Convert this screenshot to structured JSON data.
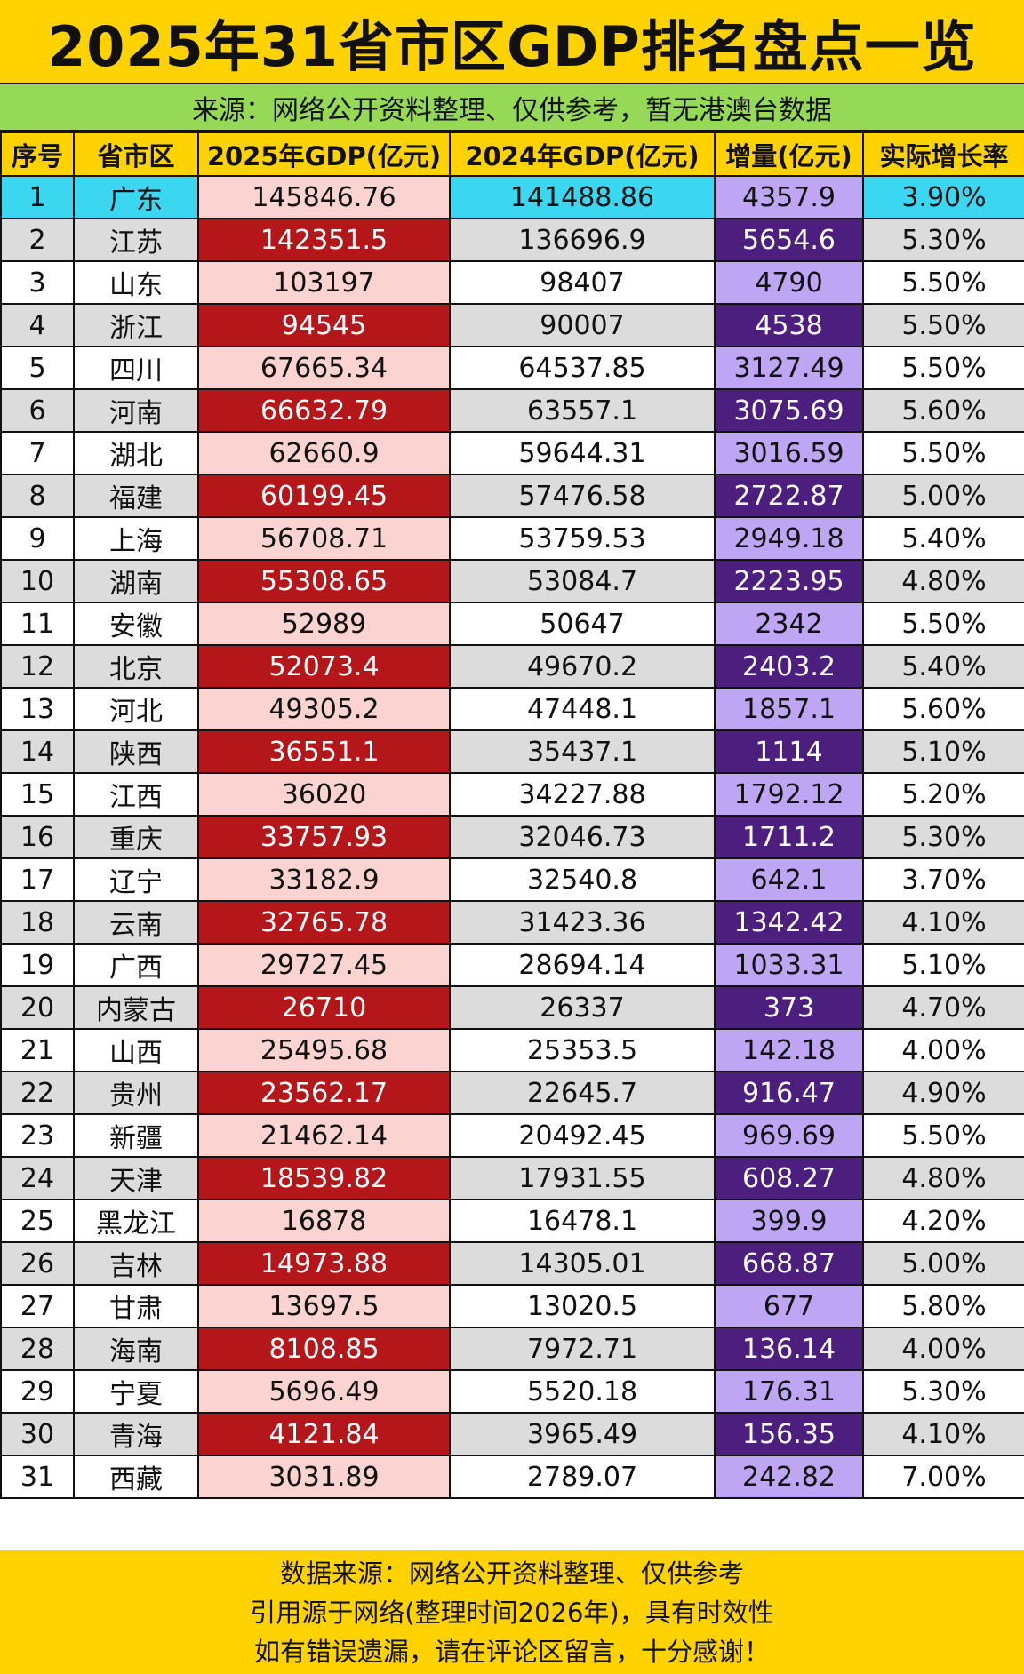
{
  "title": "2025年31省市区GDP排名盘点一览",
  "subtitle": "来源：网络公开资料整理、仅供参考，暂无港澳台数据",
  "headers": [
    "序号",
    "省市区",
    "2025年GDP(亿元)",
    "2024年GDP(亿元)",
    "增量(亿元)",
    "实际增长率"
  ],
  "rows": [
    [
      "1",
      "广东",
      "145846.76",
      "141488.86",
      "4357.9",
      "3.90%"
    ],
    [
      "2",
      "江苏",
      "142351.5",
      "136696.9",
      "5654.6",
      "5.30%"
    ],
    [
      "3",
      "山东",
      "103197",
      "98407",
      "4790",
      "5.50%"
    ],
    [
      "4",
      "浙江",
      "94545",
      "90007",
      "4538",
      "5.50%"
    ],
    [
      "5",
      "四川",
      "67665.34",
      "64537.85",
      "3127.49",
      "5.50%"
    ],
    [
      "6",
      "河南",
      "66632.79",
      "63557.1",
      "3075.69",
      "5.60%"
    ],
    [
      "7",
      "湖北",
      "62660.9",
      "59644.31",
      "3016.59",
      "5.50%"
    ],
    [
      "8",
      "福建",
      "60199.45",
      "57476.58",
      "2722.87",
      "5.00%"
    ],
    [
      "9",
      "上海",
      "56708.71",
      "53759.53",
      "2949.18",
      "5.40%"
    ],
    [
      "10",
      "湖南",
      "55308.65",
      "53084.7",
      "2223.95",
      "4.80%"
    ],
    [
      "11",
      "安徽",
      "52989",
      "50647",
      "2342",
      "5.50%"
    ],
    [
      "12",
      "北京",
      "52073.4",
      "49670.2",
      "2403.2",
      "5.40%"
    ],
    [
      "13",
      "河北",
      "49305.2",
      "47448.1",
      "1857.1",
      "5.60%"
    ],
    [
      "14",
      "陕西",
      "36551.1",
      "35437.1",
      "1114",
      "5.10%"
    ],
    [
      "15",
      "江西",
      "36020",
      "34227.88",
      "1792.12",
      "5.20%"
    ],
    [
      "16",
      "重庆",
      "33757.93",
      "32046.73",
      "1711.2",
      "5.30%"
    ],
    [
      "17",
      "辽宁",
      "33182.9",
      "32540.8",
      "642.1",
      "3.70%"
    ],
    [
      "18",
      "云南",
      "32765.78",
      "31423.36",
      "1342.42",
      "4.10%"
    ],
    [
      "19",
      "广西",
      "29727.45",
      "28694.14",
      "1033.31",
      "5.10%"
    ],
    [
      "20",
      "内蒙古",
      "26710",
      "26337",
      "373",
      "4.70%"
    ],
    [
      "21",
      "山西",
      "25495.68",
      "25353.5",
      "142.18",
      "4.00%"
    ],
    [
      "22",
      "贵州",
      "23562.17",
      "22645.7",
      "916.47",
      "4.90%"
    ],
    [
      "23",
      "新疆",
      "21462.14",
      "20492.45",
      "969.69",
      "5.50%"
    ],
    [
      "24",
      "天津",
      "18539.82",
      "17931.55",
      "608.27",
      "4.80%"
    ],
    [
      "25",
      "黑龙江",
      "16878",
      "16478.1",
      "399.9",
      "4.20%"
    ],
    [
      "26",
      "吉林",
      "14973.88",
      "14305.01",
      "668.87",
      "5.00%"
    ],
    [
      "27",
      "甘肃",
      "13697.5",
      "13020.5",
      "677",
      "5.80%"
    ],
    [
      "28",
      "海南",
      "8108.85",
      "7972.71",
      "136.14",
      "4.00%"
    ],
    [
      "29",
      "宁夏",
      "5696.49",
      "5520.18",
      "176.31",
      "5.30%"
    ],
    [
      "30",
      "青海",
      "4121.84",
      "3965.49",
      "156.35",
      "4.10%"
    ],
    [
      "31",
      "西藏",
      "3031.89",
      "2789.07",
      "242.82",
      "7.00%"
    ]
  ],
  "footer": [
    "数据来源：网络公开资料整理、仅供参考",
    "引用源于网络(整理时间2026年)，具有时效性",
    "如有错误遗漏，请在评论区留言，十分感谢！"
  ],
  "colors": {
    "title_bg": "#ffd200",
    "subtitle_bg": "#95d957",
    "highlight_row": "#3bd7f0",
    "gdp2025_light": "#fbd3d0",
    "gdp2025_dark": "#b41619",
    "increase_light": "#bfa6f4",
    "increase_dark": "#4c1e7e",
    "stripe": "#dcdcdc"
  }
}
